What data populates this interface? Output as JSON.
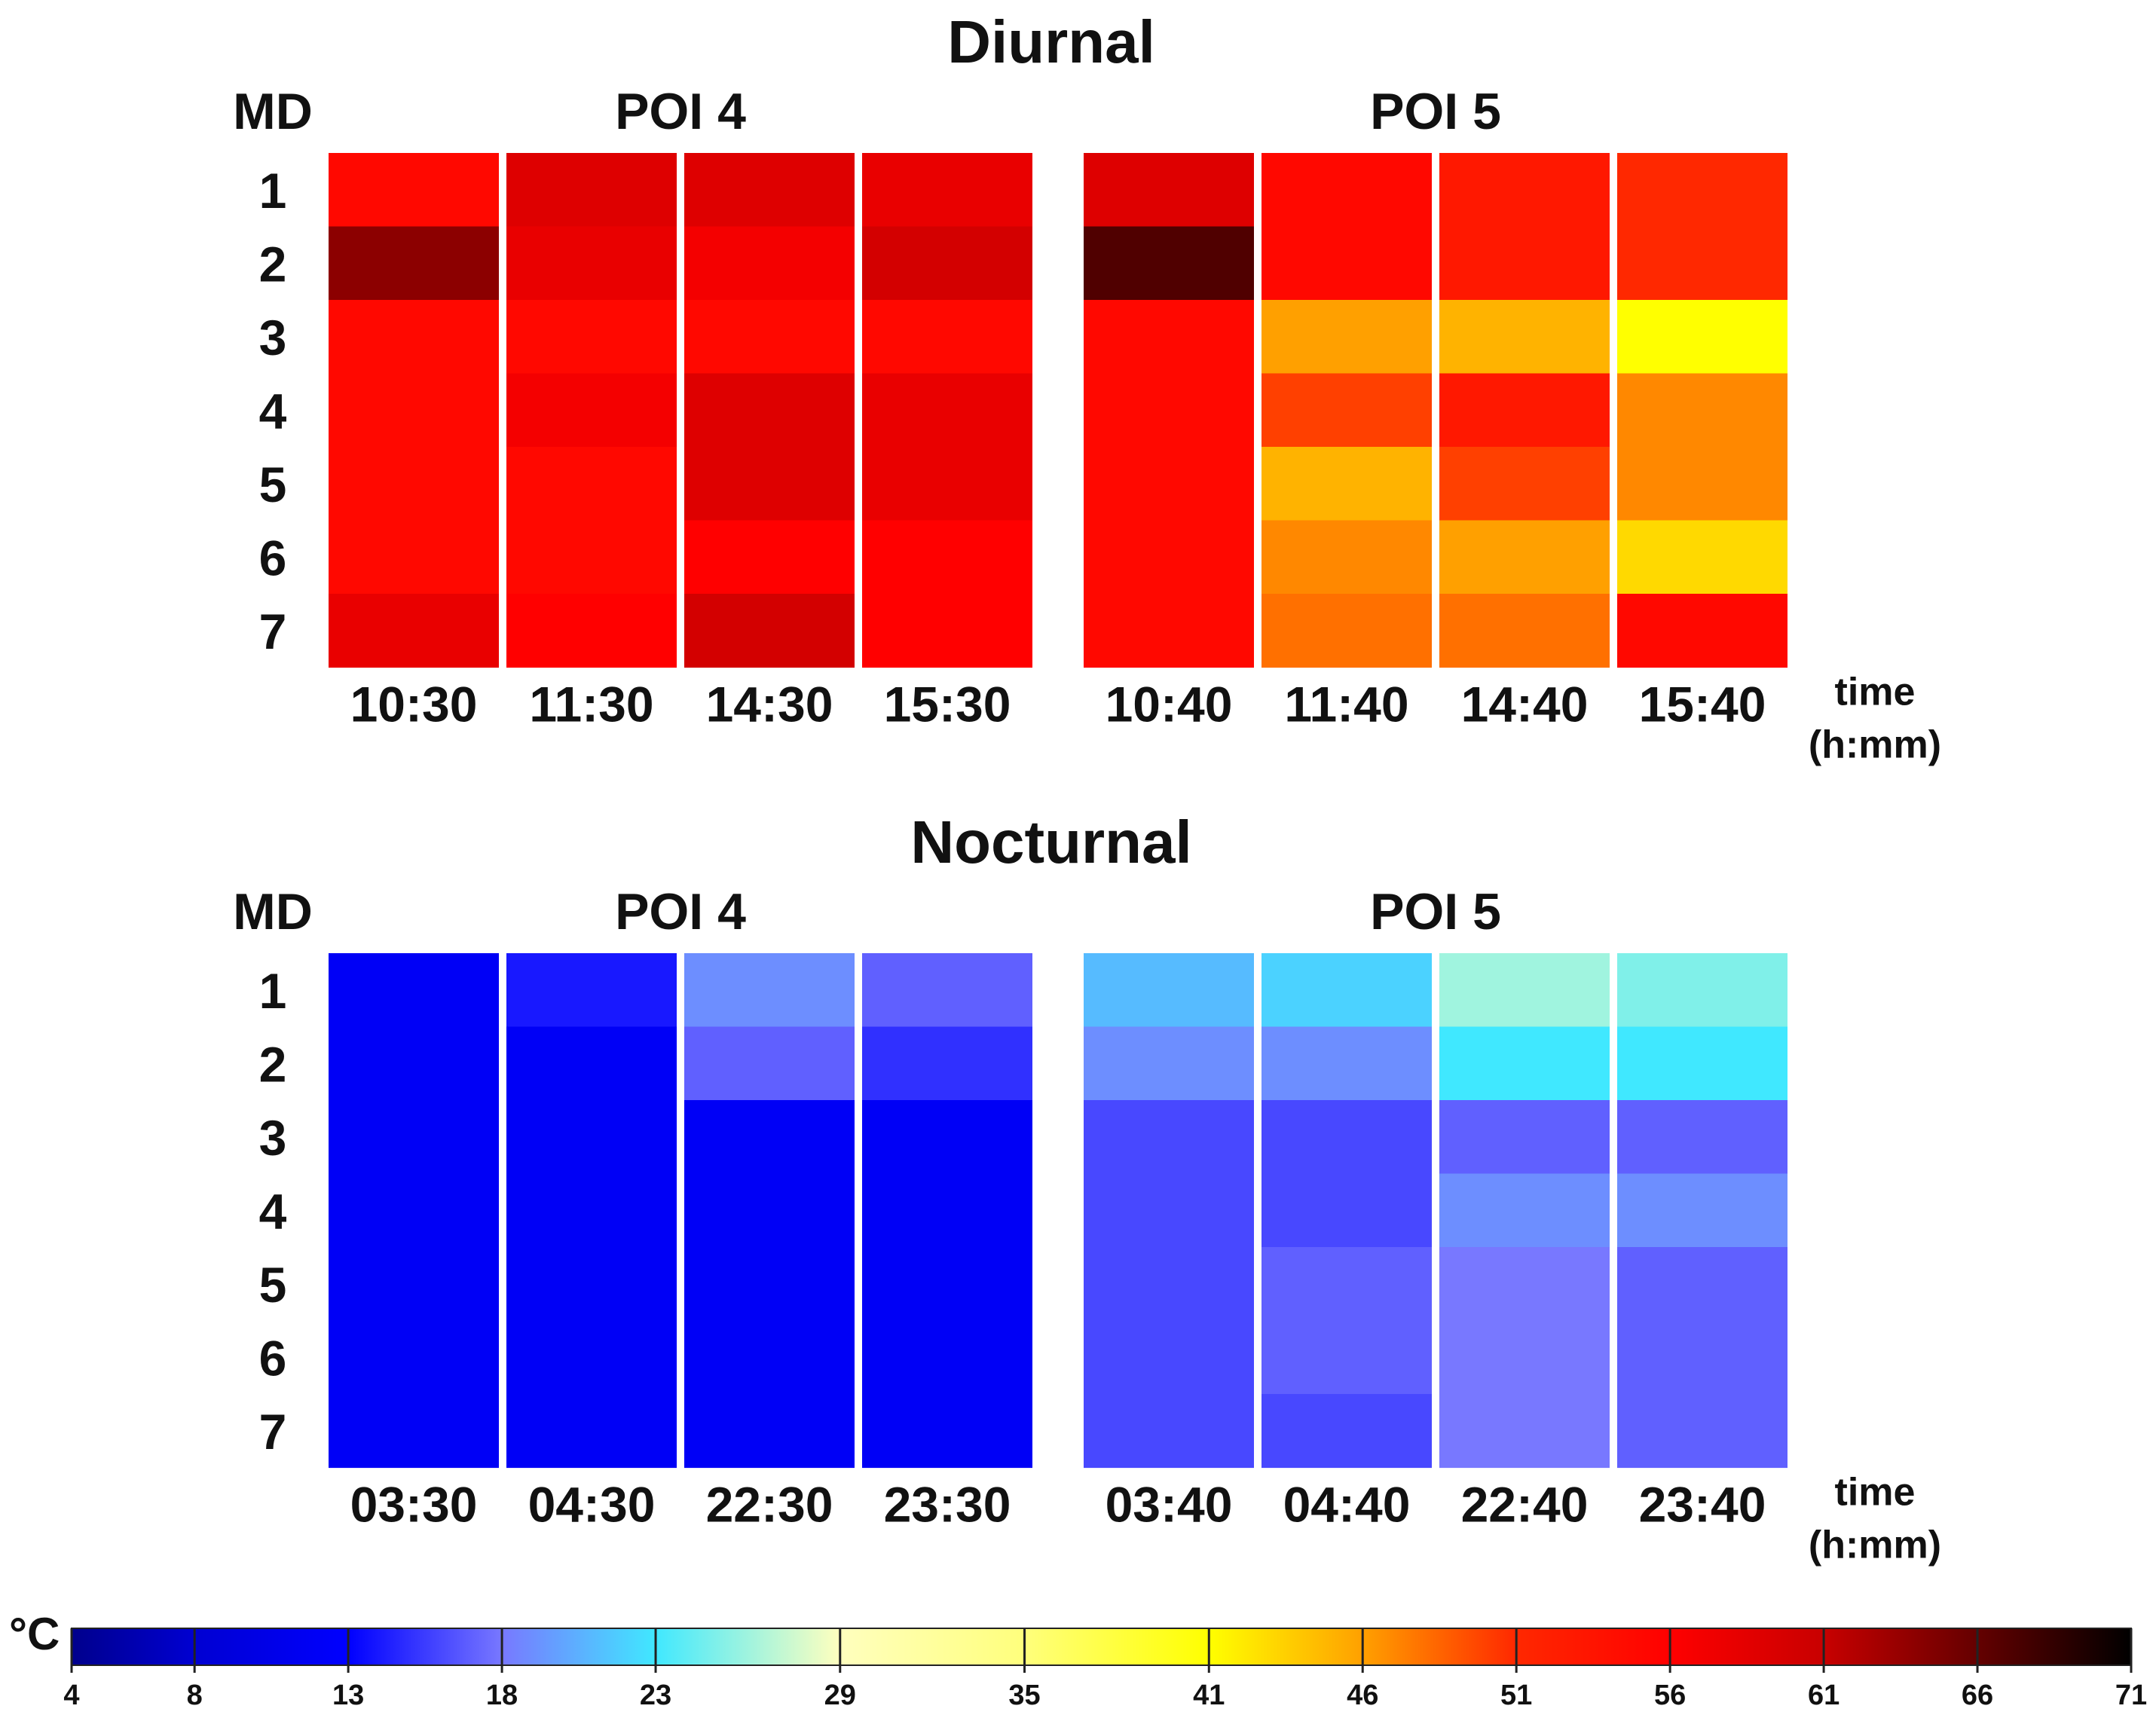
{
  "chart_data": {
    "type": "heatmap",
    "value_unit": "°C",
    "row_axis_label": "MD",
    "rows": [
      "1",
      "2",
      "3",
      "4",
      "5",
      "6",
      "7"
    ],
    "time_axis_label": [
      "time",
      "(h:mm)"
    ],
    "panels": [
      {
        "title": "Diurnal",
        "groups": [
          {
            "name": "POI 4",
            "times": [
              "10:30",
              "11:30",
              "14:30",
              "15:30"
            ],
            "values": [
              [
                55,
                59,
                59,
                58
              ],
              [
                64,
                58,
                57,
                60
              ],
              [
                55,
                55,
                55,
                55
              ],
              [
                55,
                57,
                59,
                58
              ],
              [
                55,
                55,
                59,
                58
              ],
              [
                55,
                55,
                56,
                56
              ],
              [
                58,
                56,
                60,
                56
              ]
            ]
          },
          {
            "name": "POI 5",
            "times": [
              "10:40",
              "11:40",
              "14:40",
              "15:40"
            ],
            "values": [
              [
                59,
                55,
                53,
                51
              ],
              [
                67,
                55,
                53,
                51
              ],
              [
                55,
                46,
                45,
                41
              ],
              [
                55,
                50,
                53,
                47
              ],
              [
                55,
                45,
                50,
                47
              ],
              [
                55,
                47,
                46,
                43
              ],
              [
                55,
                48,
                48,
                55
              ]
            ]
          }
        ]
      },
      {
        "title": "Nocturnal",
        "groups": [
          {
            "name": "POI 4",
            "times": [
              "03:30",
              "04:30",
              "22:30",
              "23:30"
            ],
            "values": [
              [
                12,
                14,
                19,
                17
              ],
              [
                12,
                12,
                17,
                15
              ],
              [
                12,
                12,
                12,
                12
              ],
              [
                12,
                12,
                12,
                12
              ],
              [
                12,
                12,
                12,
                12
              ],
              [
                12,
                12,
                12,
                12
              ],
              [
                12,
                12,
                12,
                12
              ]
            ]
          },
          {
            "name": "POI 5",
            "times": [
              "03:40",
              "04:40",
              "22:40",
              "23:40"
            ],
            "values": [
              [
                21,
                22,
                26,
                25
              ],
              [
                19,
                19,
                23,
                23
              ],
              [
                16,
                16,
                17,
                17
              ],
              [
                16,
                16,
                19,
                19
              ],
              [
                16,
                17,
                18,
                17
              ],
              [
                16,
                17,
                18,
                17
              ],
              [
                16,
                16,
                18,
                17
              ]
            ]
          }
        ]
      }
    ],
    "colorbar": {
      "label": "°C",
      "ticks": [
        4,
        8,
        13,
        18,
        23,
        29,
        35,
        41,
        46,
        51,
        56,
        61,
        66,
        71
      ],
      "tick_labels": [
        "4",
        "8",
        "13",
        "18",
        "23",
        "29",
        "35",
        "41",
        "46",
        "51",
        "56",
        "61",
        "66",
        "71"
      ],
      "colors": [
        "#00008c",
        "#0000d2",
        "#0000ff",
        "#7878ff",
        "#40e8ff",
        "#ffffbe",
        "#ffff7c",
        "#ffff00",
        "#ffa000",
        "#ff2800",
        "#ff0000",
        "#c80000",
        "#640000",
        "#000000"
      ],
      "range": [
        4,
        71
      ]
    }
  }
}
